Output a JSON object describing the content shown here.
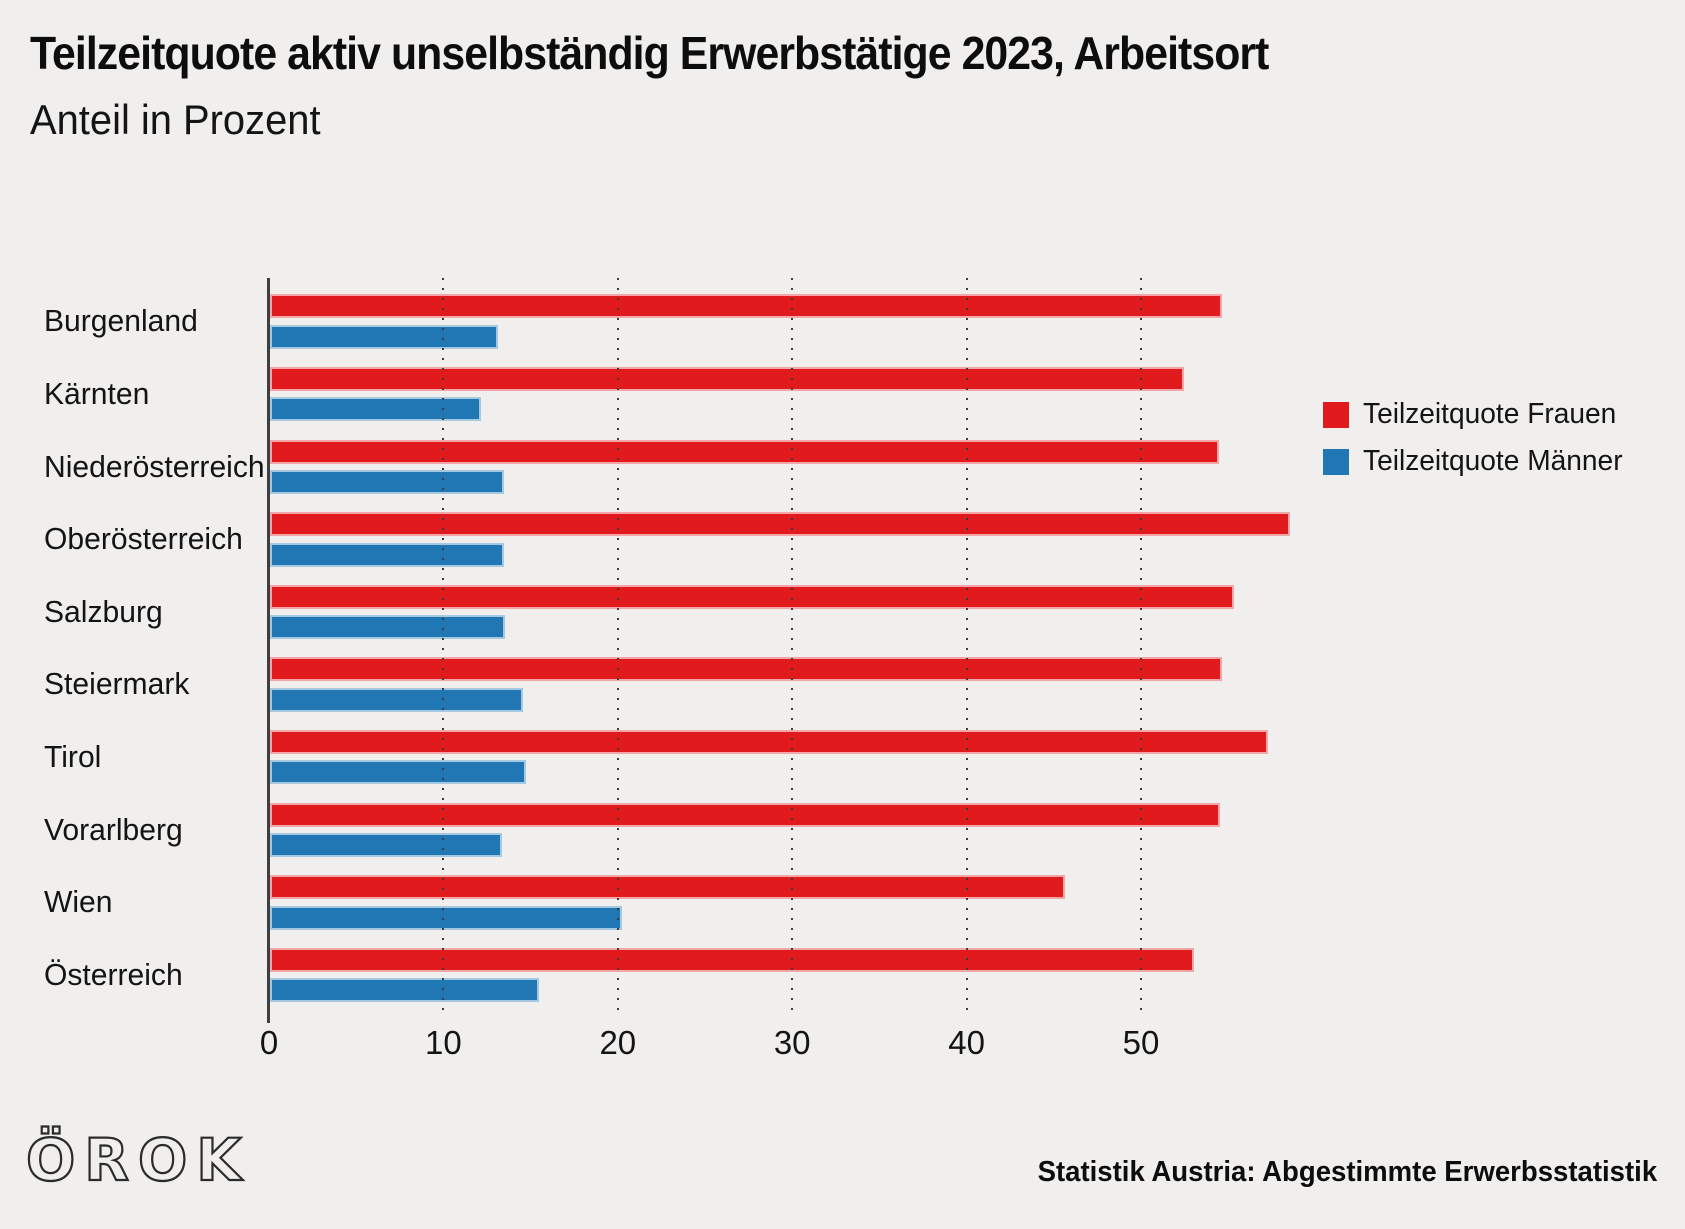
{
  "title": "Teilzeitquote aktiv unselbständig Erwerbstätige 2023, Arbeitsort",
  "subtitle": "Anteil in Prozent",
  "source": "Statistik Austria: Abgestimmte Erwerbsstatistik",
  "logo_text": "ÖROK",
  "colors": {
    "background": "#f0efed",
    "frauen": "#e11a1d",
    "maenner": "#2077b4",
    "frauen_edge": "#f2a6a8",
    "maenner_edge": "#a6c9e2",
    "axis": "#3f3f3f",
    "text": "#141414"
  },
  "chart_data": {
    "type": "bar",
    "orientation": "horizontal",
    "title": "Teilzeitquote aktiv unselbständig Erwerbstätige 2023, Arbeitsort",
    "subtitle": "Anteil in Prozent",
    "xlabel": "Anteil in Prozent",
    "ylabel": "",
    "categories": [
      "Burgenland",
      "Kärnten",
      "Niederösterreich",
      "Oberösterreich",
      "Salzburg",
      "Steiermark",
      "Tirol",
      "Vorarlberg",
      "Wien",
      "Österreich"
    ],
    "series": [
      {
        "name": "Teilzeitquote Frauen",
        "color": "#e11a1d",
        "values": [
          54.6,
          52.4,
          54.4,
          58.5,
          55.3,
          54.6,
          57.2,
          54.5,
          45.6,
          53.0
        ]
      },
      {
        "name": "Teilzeitquote Männer",
        "color": "#2077b4",
        "values": [
          13.1,
          12.1,
          13.4,
          13.4,
          13.5,
          14.5,
          14.7,
          13.3,
          20.2,
          15.4
        ]
      }
    ],
    "x_ticks": [
      0,
      10,
      20,
      30,
      40,
      50
    ],
    "xlim": [
      0,
      60
    ],
    "grid": "dotted-vertical",
    "legend_position": "right"
  }
}
